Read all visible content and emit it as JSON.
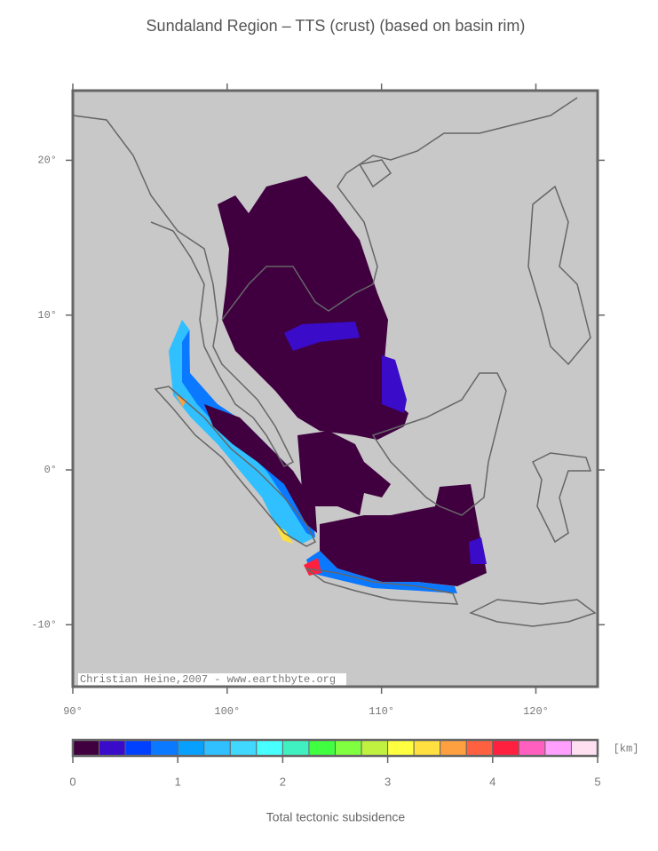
{
  "title": "Sundaland Region – TTS (crust) (based on basin rim)",
  "credit": "Christian Heine,2007 - www.earthbyte.org",
  "map": {
    "xlim": [
      90,
      124
    ],
    "ylim": [
      -14,
      24.5
    ],
    "xticks": [
      {
        "value": 90,
        "label": "90°"
      },
      {
        "value": 100,
        "label": "100°"
      },
      {
        "value": 110,
        "label": "110°"
      },
      {
        "value": 120,
        "label": "120°"
      }
    ],
    "yticks": [
      {
        "value": 20,
        "label": "20°"
      },
      {
        "value": 10,
        "label": "10°"
      },
      {
        "value": 0,
        "label": "0°"
      },
      {
        "value": -10,
        "label": "-10°"
      }
    ]
  },
  "colorbar": {
    "range": [
      0,
      5
    ],
    "ticks": [
      0,
      1,
      2,
      3,
      4,
      5
    ],
    "unit": "[km]",
    "label": "Total tectonic subsidence",
    "colors": [
      "#400040",
      "#3a0bc8",
      "#0040ff",
      "#0a78ff",
      "#08a0ff",
      "#30c0ff",
      "#40d8ff",
      "#48ffff",
      "#40f0c0",
      "#40ff40",
      "#80ff40",
      "#c0f040",
      "#ffff40",
      "#ffe040",
      "#ffa040",
      "#ff6040",
      "#ff2040",
      "#ff60c0",
      "#ffa0ff",
      "#ffe0f0"
    ]
  }
}
